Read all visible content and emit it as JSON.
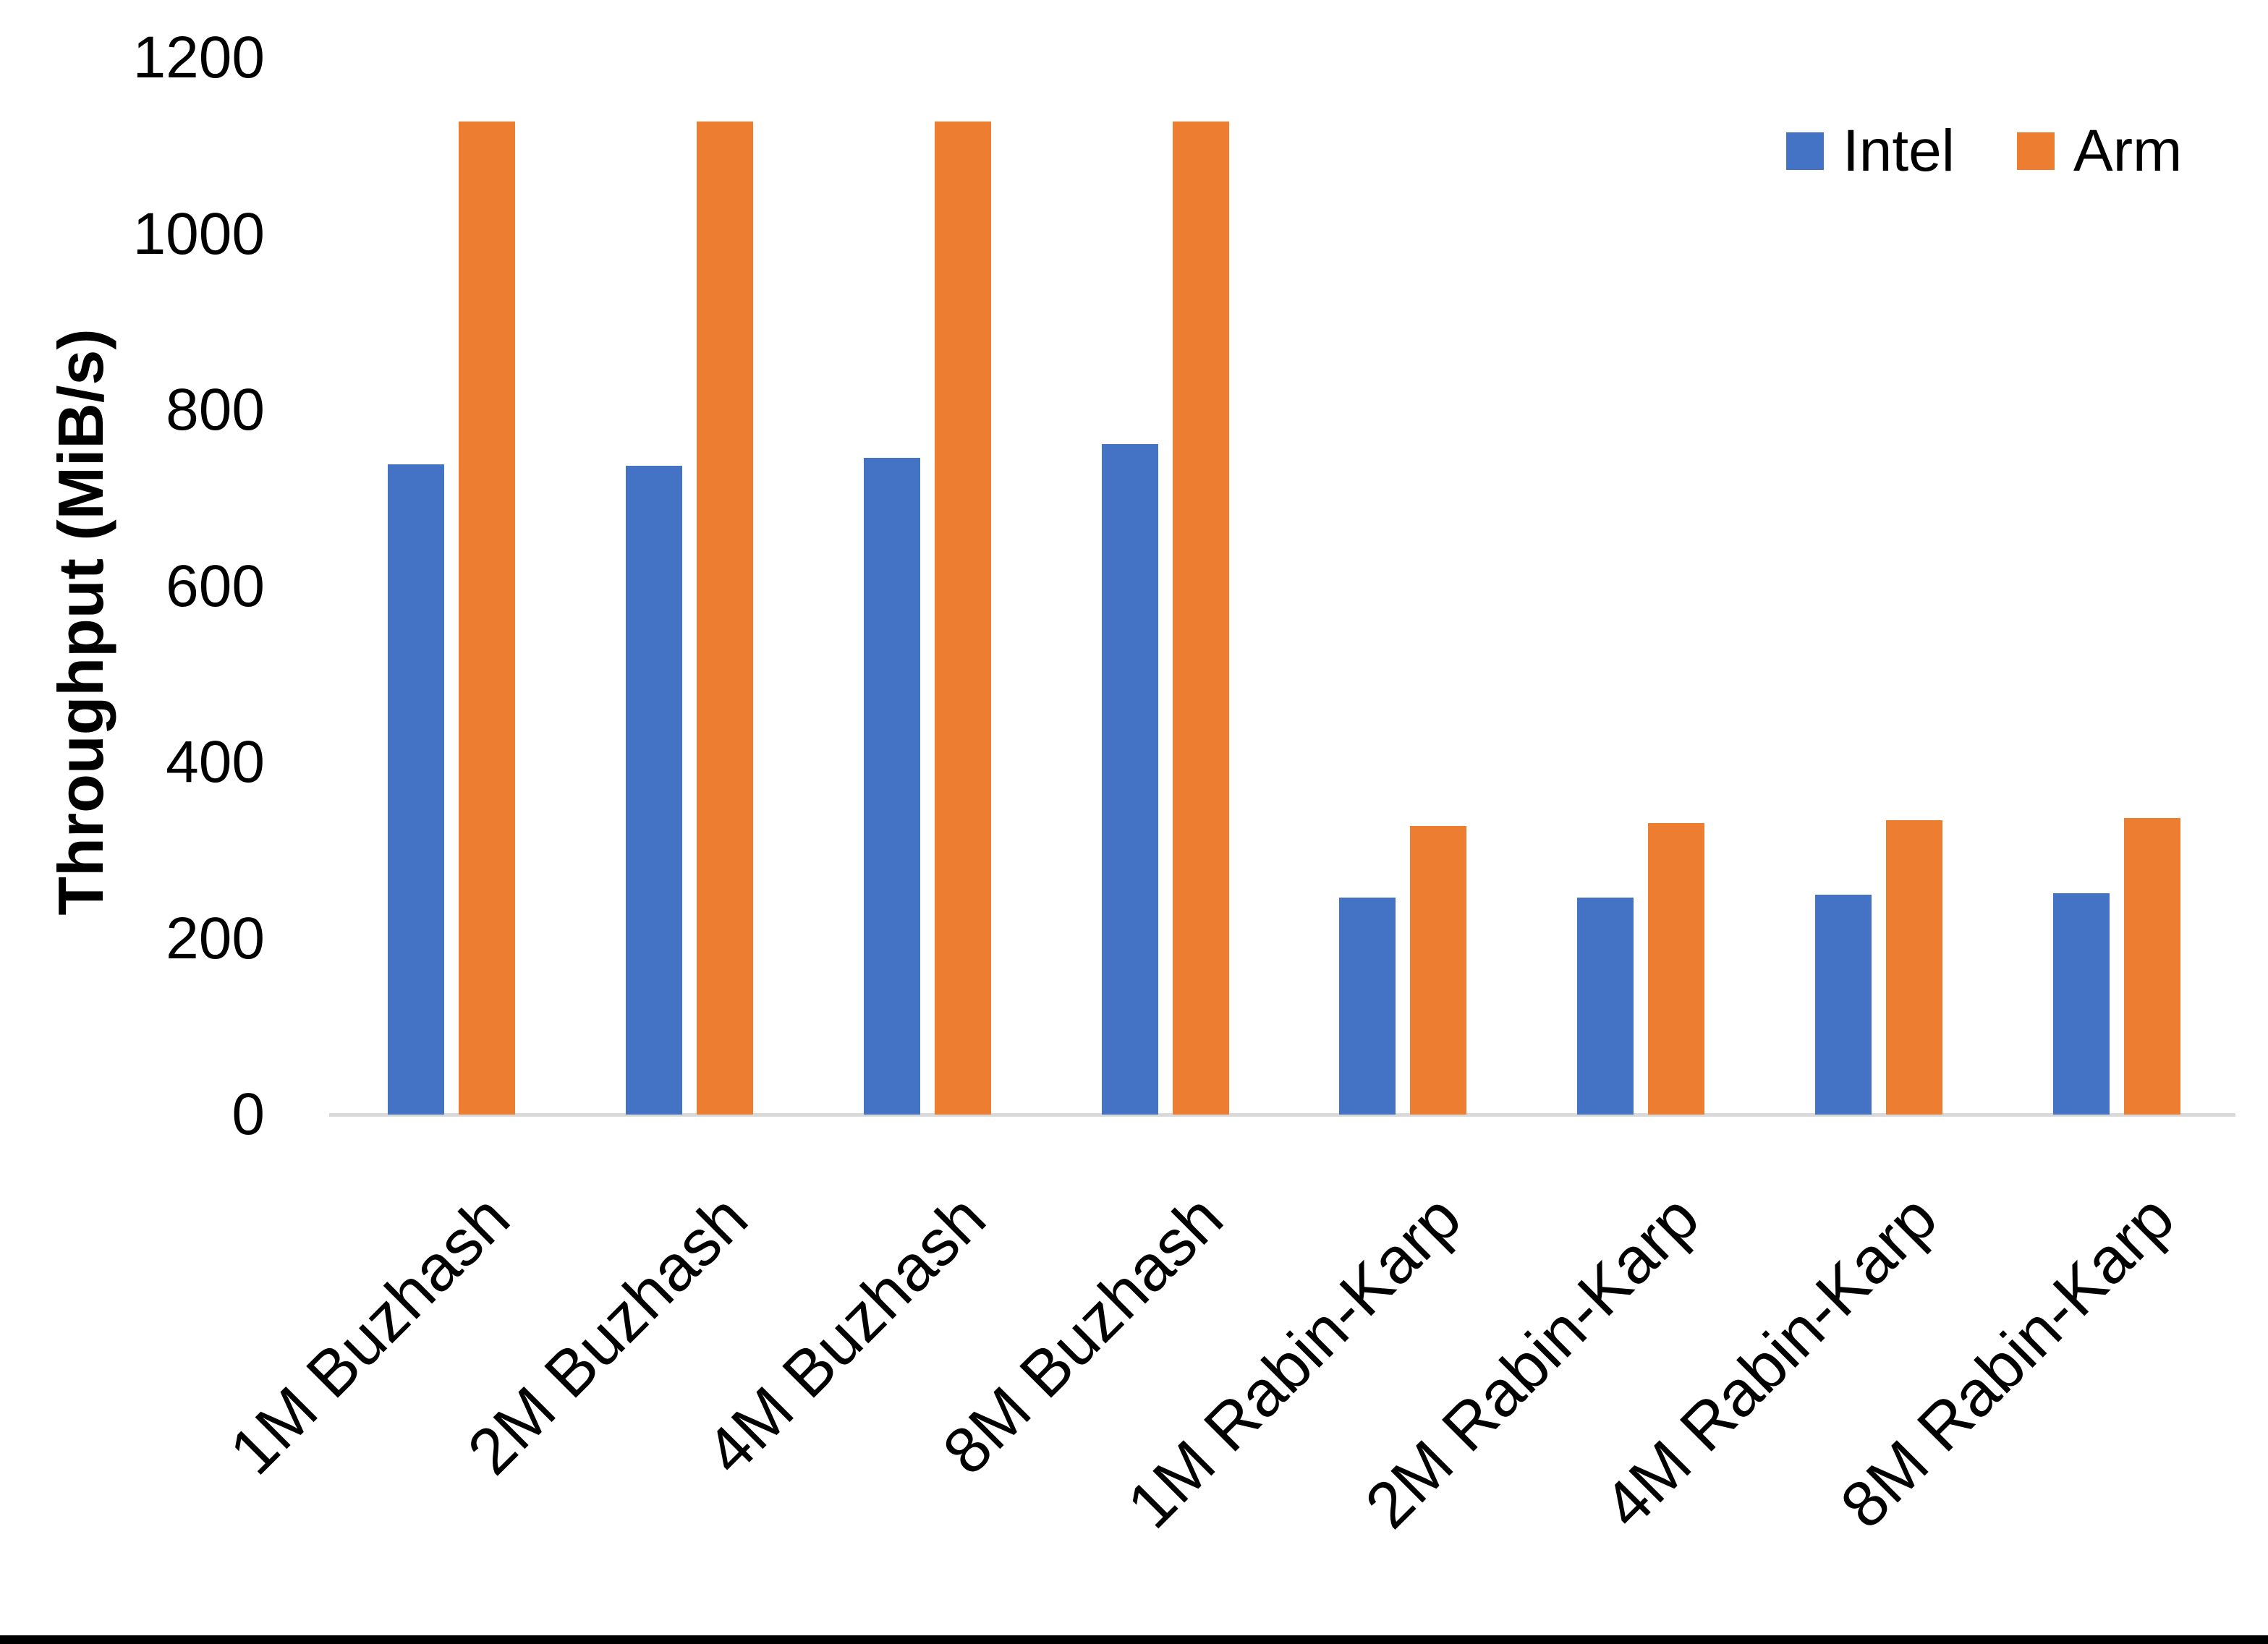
{
  "chart_data": {
    "type": "bar",
    "title": "",
    "xlabel": "",
    "ylabel": "Throughput (MiB/s)",
    "ylim": [
      0,
      1200
    ],
    "yticks": [
      1200,
      1000,
      800,
      600,
      400,
      200,
      0
    ],
    "grid": false,
    "axis_line_color": "#D9D9D9",
    "text_color": "#000000",
    "background_color": "#FFFFFF",
    "legend_position": "top-right",
    "categories": [
      "1M Buzhash",
      "2M Buzhash",
      "4M Buzhash",
      "8M Buzhash",
      "1M Rabin-Karp",
      "2M Rabin-Karp",
      "4M Rabin-Karp",
      "8M Rabin-Karp"
    ],
    "series": [
      {
        "name": "Intel",
        "color": "#4472C4",
        "values": [
          738,
          737,
          746,
          761,
          246,
          246,
          250,
          251
        ]
      },
      {
        "name": "Arm",
        "color": "#ED7D31",
        "values": [
          1128,
          1128,
          1128,
          1128,
          328,
          331,
          334,
          337
        ]
      }
    ]
  }
}
